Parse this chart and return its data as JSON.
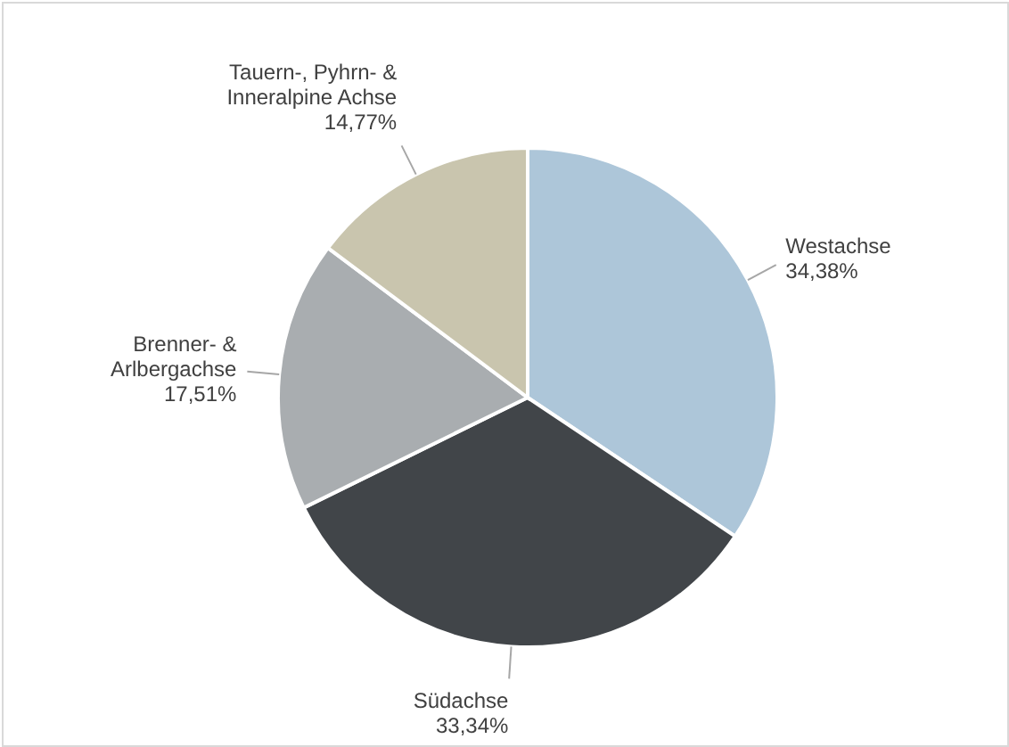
{
  "chart_data": {
    "type": "pie",
    "categories": [
      "Westachse",
      "Südachse",
      "Brenner- & Arlbergachse",
      "Tauern-, Pyhrn- & Inneralpine Achse"
    ],
    "values": [
      34.38,
      33.34,
      17.51,
      14.77
    ],
    "value_labels": [
      "34,38%",
      "33,34%",
      "17,51%",
      "14,77%"
    ],
    "colors": [
      "#adc6d9",
      "#414549",
      "#a9adb0",
      "#c9c5ae"
    ]
  }
}
